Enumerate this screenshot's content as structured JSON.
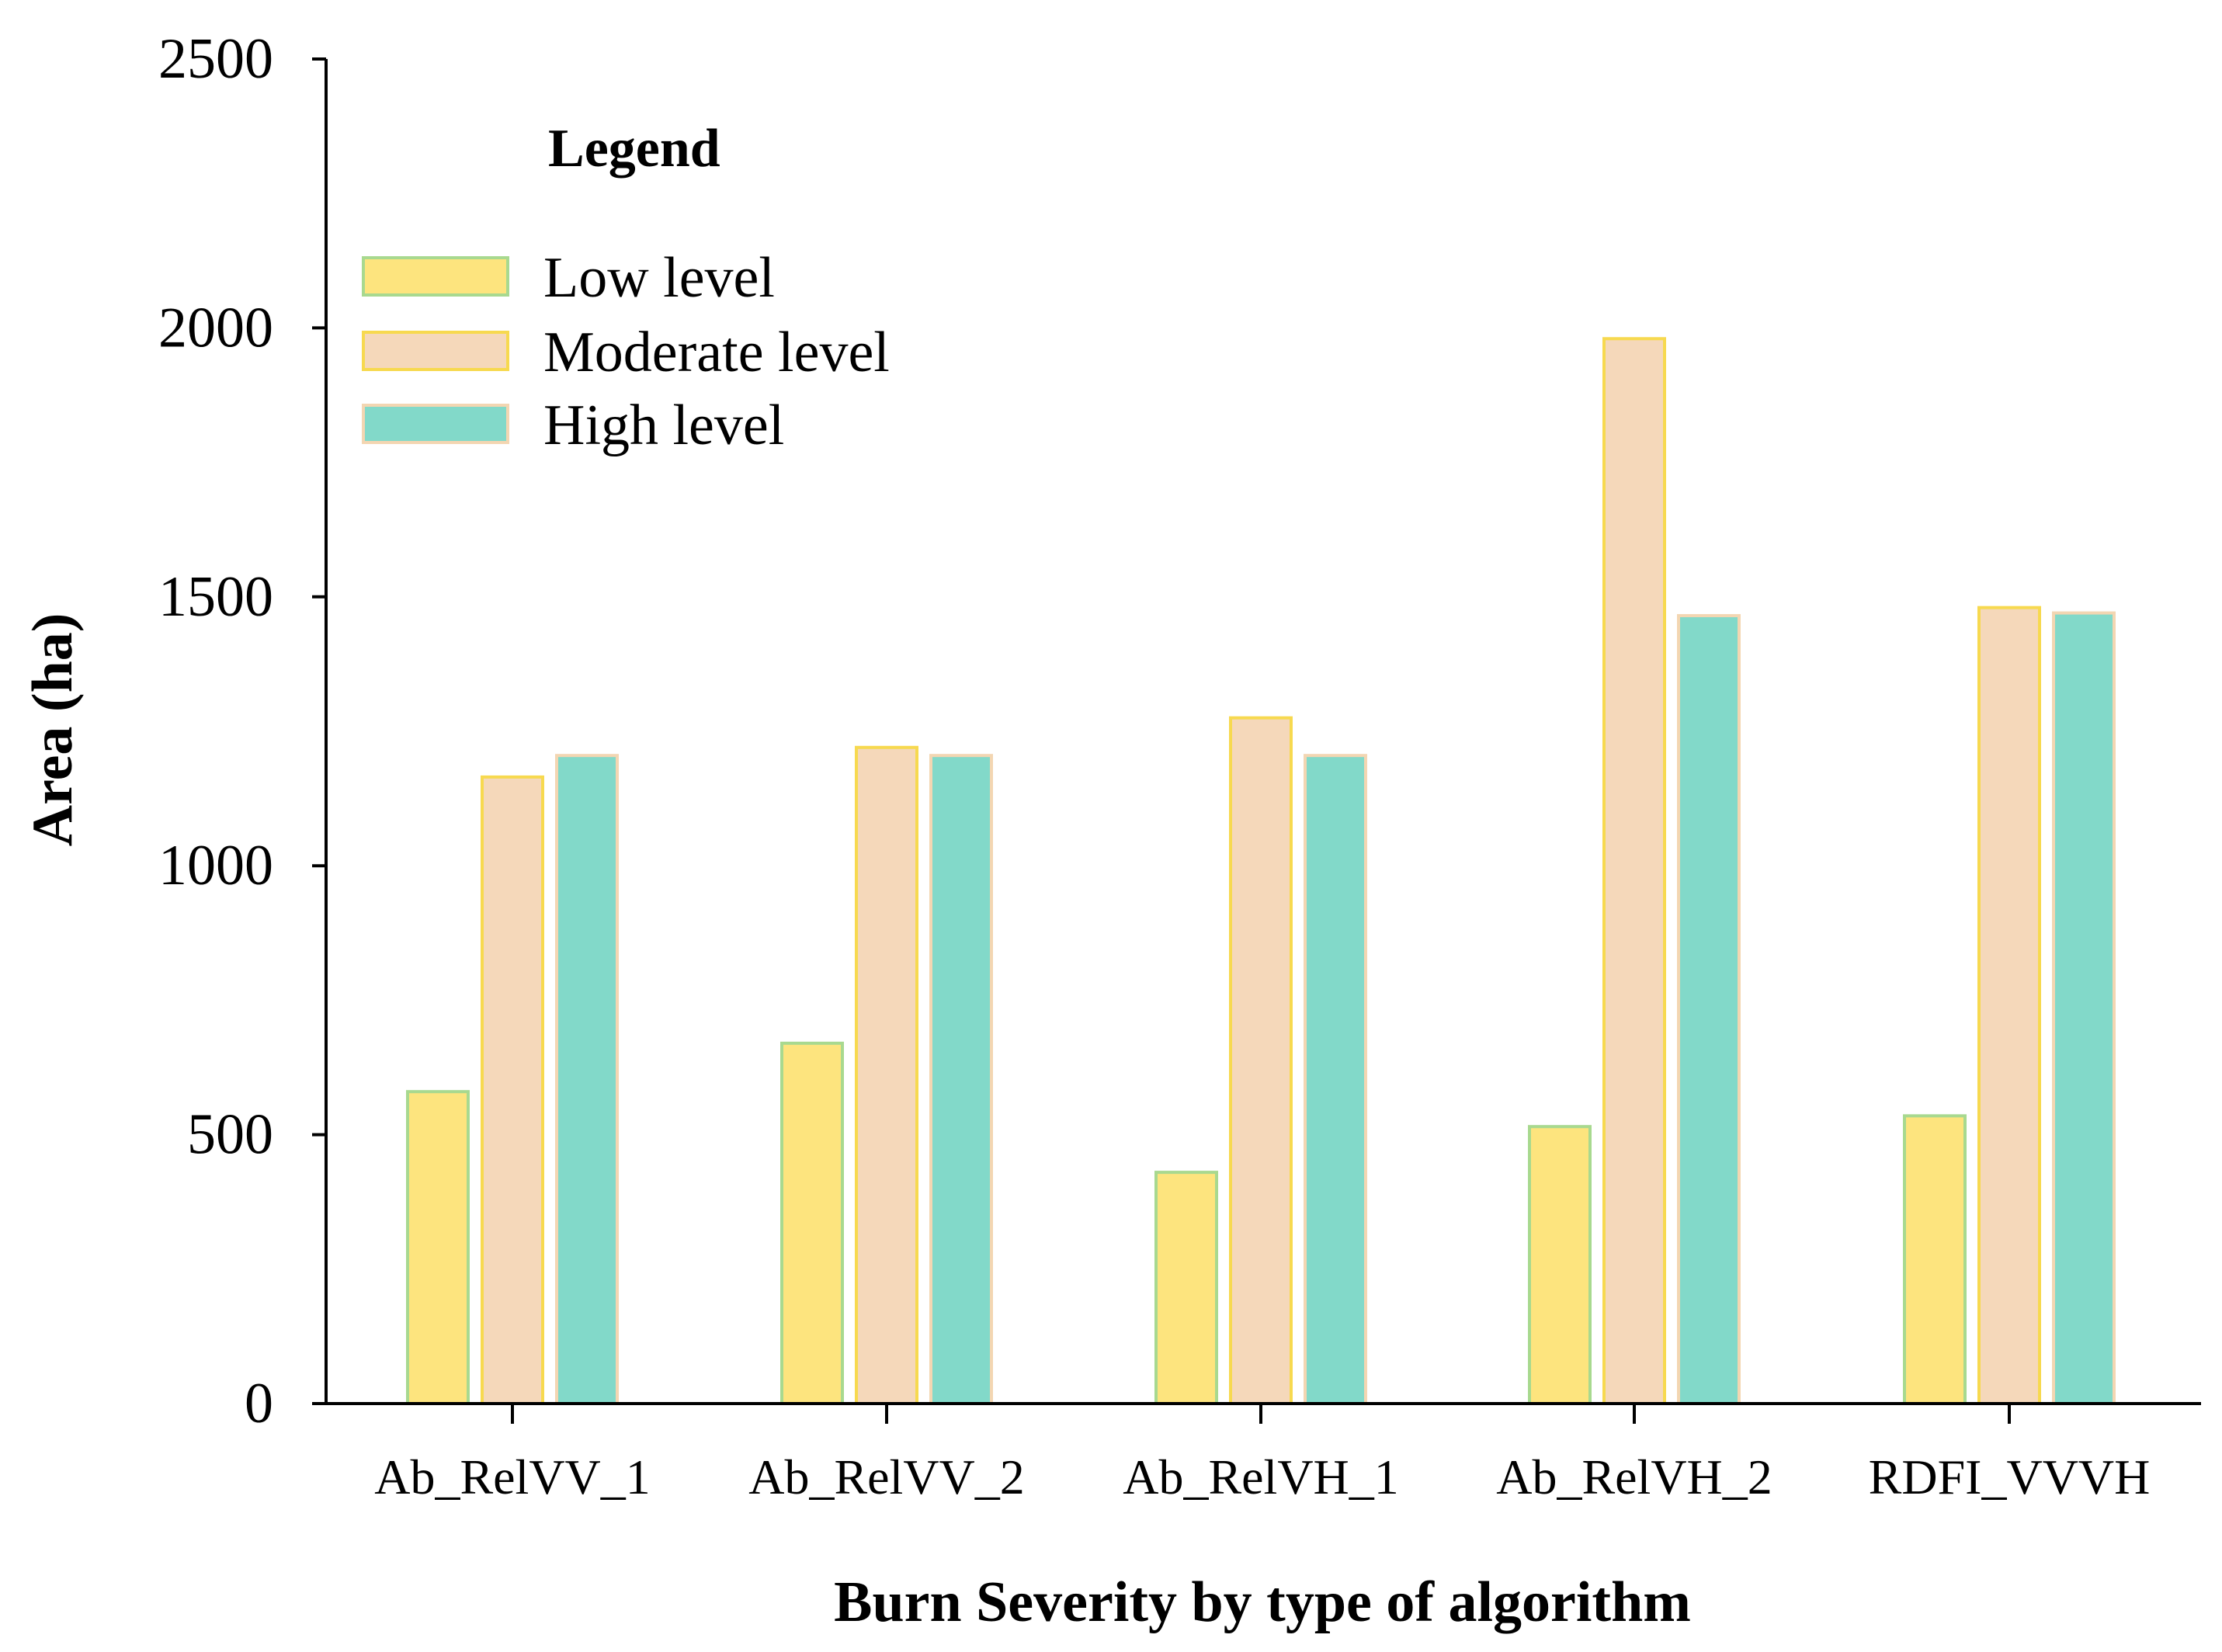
{
  "chart_data": {
    "type": "bar",
    "title": "",
    "xlabel": "Burn Severity by type of algorithm",
    "ylabel": "Area (ha)",
    "ylim": [
      0,
      2500
    ],
    "yticks": [
      0,
      500,
      1000,
      1500,
      2000,
      2500
    ],
    "ytick_labels": [
      "0",
      "500",
      "1000",
      "1500",
      "2000",
      "2500"
    ],
    "grid": false,
    "categories": [
      "Ab_RelVV_1",
      "Ab_RelVV_2",
      "Ab_RelVH_1",
      "Ab_RelVH_2",
      "RDFI_VVVH"
    ],
    "legend": {
      "title": "Legend",
      "placement": "top-left"
    },
    "series": [
      {
        "name": "Low level",
        "values": [
          580,
          670,
          430,
          515,
          535
        ],
        "fill": "#FDE47E",
        "stroke": "#A8D98F"
      },
      {
        "name": "Moderate level",
        "values": [
          1165,
          1220,
          1275,
          1980,
          1480
        ],
        "fill": "#F5D8BA",
        "stroke": "#F7D94F"
      },
      {
        "name": "High level",
        "values": [
          1205,
          1205,
          1205,
          1465,
          1470
        ],
        "fill": "#82D9C9",
        "stroke": "#F3D6B2"
      }
    ]
  }
}
